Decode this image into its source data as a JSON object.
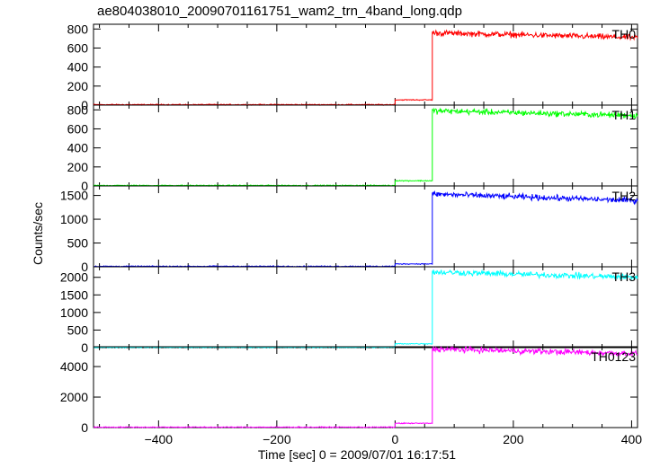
{
  "chart_data": {
    "type": "line",
    "title": "ae804038010_20090701161751_wam2_trn_4band_long.qdp",
    "xlabel": "Time [sec] 0 = 2009/07/01 16:17:51",
    "ylabel": "Counts/sec",
    "xlim": [
      -510,
      410
    ],
    "xticks": [
      -400,
      -200,
      0,
      200,
      400
    ],
    "grid": false,
    "panels": [
      {
        "name": "TH0",
        "color": "#ff0000",
        "ylim": [
          0,
          850
        ],
        "yticks": [
          0,
          200,
          400,
          600,
          800
        ],
        "segments": [
          {
            "x": [
              -510,
              0
            ],
            "level": 5
          },
          {
            "x": [
              0,
              63
            ],
            "level": 55
          },
          {
            "x": [
              63,
              410
            ],
            "start": 760,
            "end": 710
          }
        ]
      },
      {
        "name": "TH1",
        "color": "#00ff00",
        "ylim": [
          0,
          850
        ],
        "yticks": [
          0,
          200,
          400,
          600,
          800
        ],
        "segments": [
          {
            "x": [
              -510,
              0
            ],
            "level": 5
          },
          {
            "x": [
              0,
              63
            ],
            "level": 55
          },
          {
            "x": [
              63,
              410
            ],
            "start": 790,
            "end": 740
          }
        ]
      },
      {
        "name": "TH2",
        "color": "#0000ff",
        "ylim": [
          0,
          1700
        ],
        "yticks": [
          0,
          500,
          1000,
          1500
        ],
        "segments": [
          {
            "x": [
              -510,
              0
            ],
            "level": 10
          },
          {
            "x": [
              0,
              63
            ],
            "level": 60
          },
          {
            "x": [
              63,
              410
            ],
            "start": 1530,
            "end": 1390
          }
        ]
      },
      {
        "name": "TH3",
        "color": "#00ffff",
        "ylim": [
          0,
          2300
        ],
        "yticks": [
          0,
          500,
          1000,
          1500,
          2000
        ],
        "segments": [
          {
            "x": [
              -510,
              0
            ],
            "level": 10
          },
          {
            "x": [
              0,
              63
            ],
            "level": 110
          },
          {
            "x": [
              63,
              410
            ],
            "start": 2150,
            "end": 2000
          }
        ]
      },
      {
        "name": "TH0123",
        "color": "#ff00ff",
        "ylim": [
          0,
          5300
        ],
        "yticks": [
          0,
          2000,
          4000
        ],
        "segments": [
          {
            "x": [
              -510,
              0
            ],
            "level": 30
          },
          {
            "x": [
              0,
              63
            ],
            "level": 280
          },
          {
            "x": [
              63,
              410
            ],
            "start": 5150,
            "end": 4850
          }
        ]
      }
    ]
  }
}
